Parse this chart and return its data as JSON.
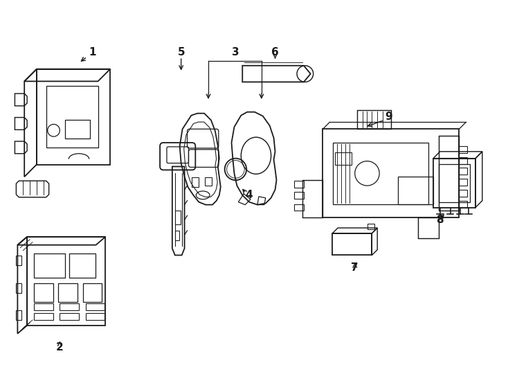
{
  "background_color": "#ffffff",
  "line_color": "#1a1a1a",
  "line_width": 1.3,
  "figsize": [
    7.34,
    5.4
  ],
  "dpi": 100
}
